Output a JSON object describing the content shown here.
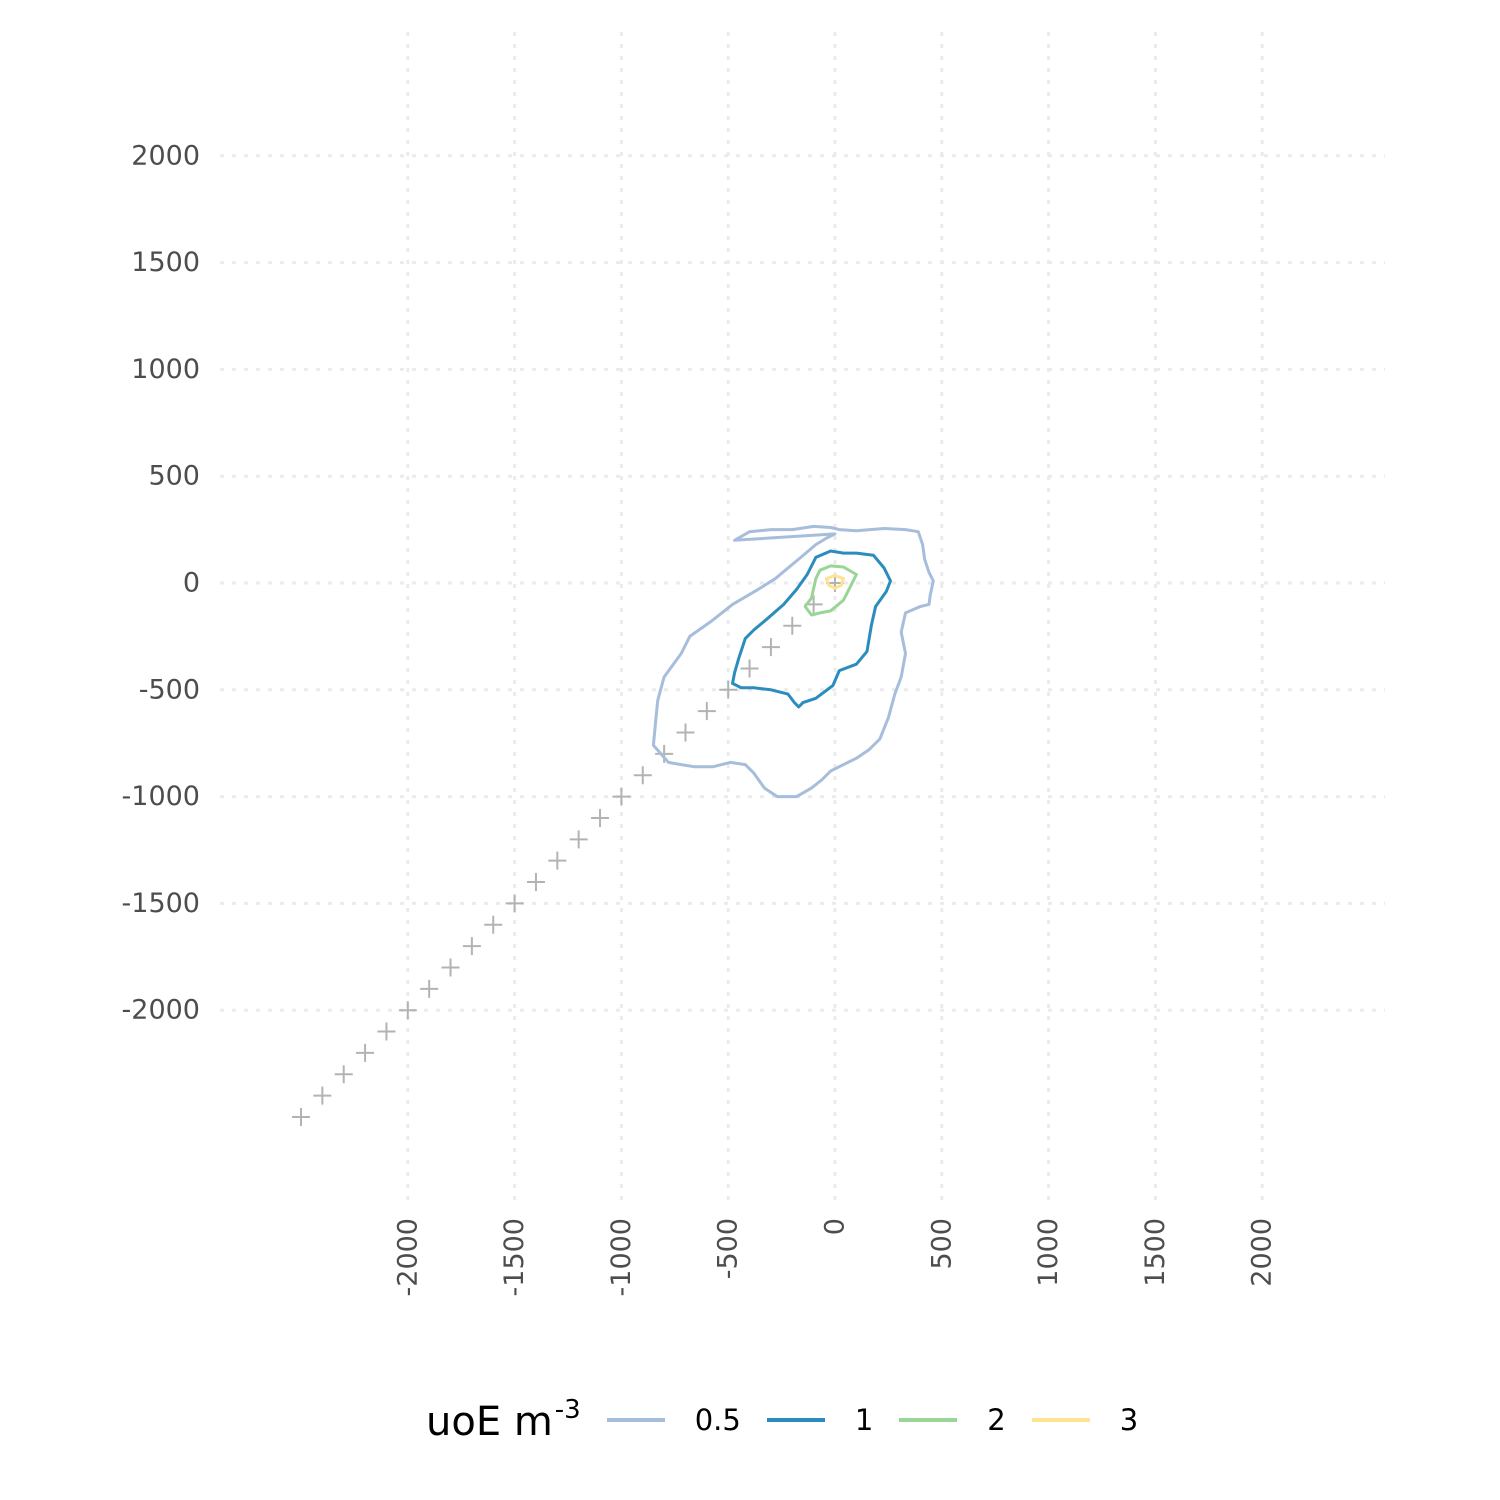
{
  "chart_data": {
    "type": "contour",
    "title": "",
    "xlabel": "",
    "ylabel": "",
    "xlim": [
      -2500,
      2500
    ],
    "ylim": [
      -2500,
      2500
    ],
    "x_ticks": [
      -2000,
      -1500,
      -1000,
      -500,
      0,
      500,
      1000,
      1500,
      2000
    ],
    "y_ticks": [
      -2000,
      -1500,
      -1000,
      -500,
      0,
      500,
      1000,
      1500,
      2000
    ],
    "x_tick_labels": [
      "-2000",
      "-1500",
      "-1000",
      "-500",
      "0",
      "500",
      "1000",
      "1500",
      "2000"
    ],
    "y_tick_labels": [
      "-2000",
      "-1500",
      "-1000",
      "-500",
      "0",
      "500",
      "1000",
      "1500",
      "2000"
    ],
    "grid": "dotted, major",
    "legend": {
      "title": "uoE m",
      "title_exponent": "-3",
      "position": "bottom"
    },
    "levels": [
      {
        "label": "0.5",
        "color": "#a6bddb",
        "points": [
          [
            -470,
            200
          ],
          [
            -400,
            240
          ],
          [
            -300,
            250
          ],
          [
            -200,
            250
          ],
          [
            -100,
            265
          ],
          [
            -20,
            260
          ],
          [
            20,
            250
          ],
          [
            100,
            245
          ],
          [
            230,
            255
          ],
          [
            330,
            250
          ],
          [
            390,
            240
          ],
          [
            410,
            180
          ],
          [
            420,
            110
          ],
          [
            440,
            50
          ],
          [
            460,
            10
          ],
          [
            445,
            -60
          ],
          [
            440,
            -100
          ],
          [
            400,
            -110
          ],
          [
            330,
            -140
          ],
          [
            310,
            -230
          ],
          [
            330,
            -330
          ],
          [
            310,
            -440
          ],
          [
            280,
            -520
          ],
          [
            250,
            -630
          ],
          [
            210,
            -730
          ],
          [
            160,
            -780
          ],
          [
            100,
            -820
          ],
          [
            20,
            -860
          ],
          [
            -20,
            -880
          ],
          [
            -60,
            -920
          ],
          [
            -110,
            -960
          ],
          [
            -180,
            -1000
          ],
          [
            -270,
            -1000
          ],
          [
            -330,
            -960
          ],
          [
            -380,
            -890
          ],
          [
            -420,
            -850
          ],
          [
            -490,
            -840
          ],
          [
            -570,
            -860
          ],
          [
            -660,
            -860
          ],
          [
            -720,
            -850
          ],
          [
            -780,
            -840
          ],
          [
            -850,
            -760
          ],
          [
            -840,
            -650
          ],
          [
            -830,
            -550
          ],
          [
            -800,
            -440
          ],
          [
            -720,
            -330
          ],
          [
            -680,
            -250
          ],
          [
            -580,
            -180
          ],
          [
            -480,
            -100
          ],
          [
            -360,
            -30
          ],
          [
            -280,
            20
          ],
          [
            -220,
            70
          ],
          [
            -160,
            120
          ],
          [
            -90,
            180
          ],
          [
            -40,
            210
          ],
          [
            0,
            230
          ]
        ],
        "closed": true
      },
      {
        "label": "1",
        "color": "#2b8cbe",
        "points": [
          [
            -90,
            120
          ],
          [
            -20,
            150
          ],
          [
            40,
            140
          ],
          [
            100,
            140
          ],
          [
            180,
            130
          ],
          [
            230,
            70
          ],
          [
            260,
            10
          ],
          [
            240,
            -40
          ],
          [
            190,
            -110
          ],
          [
            170,
            -200
          ],
          [
            150,
            -320
          ],
          [
            100,
            -380
          ],
          [
            20,
            -410
          ],
          [
            -10,
            -480
          ],
          [
            -90,
            -540
          ],
          [
            -150,
            -560
          ],
          [
            -170,
            -580
          ],
          [
            -190,
            -560
          ],
          [
            -220,
            -520
          ],
          [
            -300,
            -500
          ],
          [
            -380,
            -490
          ],
          [
            -440,
            -490
          ],
          [
            -480,
            -470
          ],
          [
            -470,
            -420
          ],
          [
            -450,
            -350
          ],
          [
            -420,
            -260
          ],
          [
            -380,
            -220
          ],
          [
            -320,
            -170
          ],
          [
            -240,
            -100
          ],
          [
            -180,
            -30
          ],
          [
            -130,
            40
          ]
        ],
        "closed": true
      },
      {
        "label": "2",
        "color": "#99d594",
        "points": [
          [
            -70,
            60
          ],
          [
            -20,
            80
          ],
          [
            40,
            75
          ],
          [
            100,
            40
          ],
          [
            70,
            -20
          ],
          [
            40,
            -80
          ],
          [
            -20,
            -130
          ],
          [
            -70,
            -140
          ],
          [
            -110,
            -150
          ],
          [
            -140,
            -110
          ],
          [
            -110,
            -70
          ],
          [
            -90,
            20
          ]
        ],
        "closed": true
      },
      {
        "label": "3",
        "color": "#fee391",
        "points": [
          [
            -40,
            20
          ],
          [
            0,
            35
          ],
          [
            40,
            20
          ],
          [
            30,
            -10
          ],
          [
            0,
            -25
          ],
          [
            -30,
            -10
          ]
        ],
        "closed": true
      }
    ],
    "marker_points": {
      "shape": "+",
      "color": "#b3b3b3",
      "x": [
        -2500,
        -2400,
        -2300,
        -2200,
        -2100,
        -2000,
        -1900,
        -1800,
        -1700,
        -1600,
        -1500,
        -1400,
        -1300,
        -1200,
        -1100,
        -1000,
        -900,
        -800,
        -700,
        -600,
        -500,
        -400,
        -300,
        -200,
        -100,
        0
      ],
      "y": [
        -2500,
        -2400,
        -2300,
        -2200,
        -2100,
        -2000,
        -1900,
        -1800,
        -1700,
        -1600,
        -1500,
        -1400,
        -1300,
        -1200,
        -1100,
        -1000,
        -900,
        -800,
        -700,
        -600,
        -500,
        -400,
        -300,
        -200,
        -100,
        0
      ]
    }
  }
}
